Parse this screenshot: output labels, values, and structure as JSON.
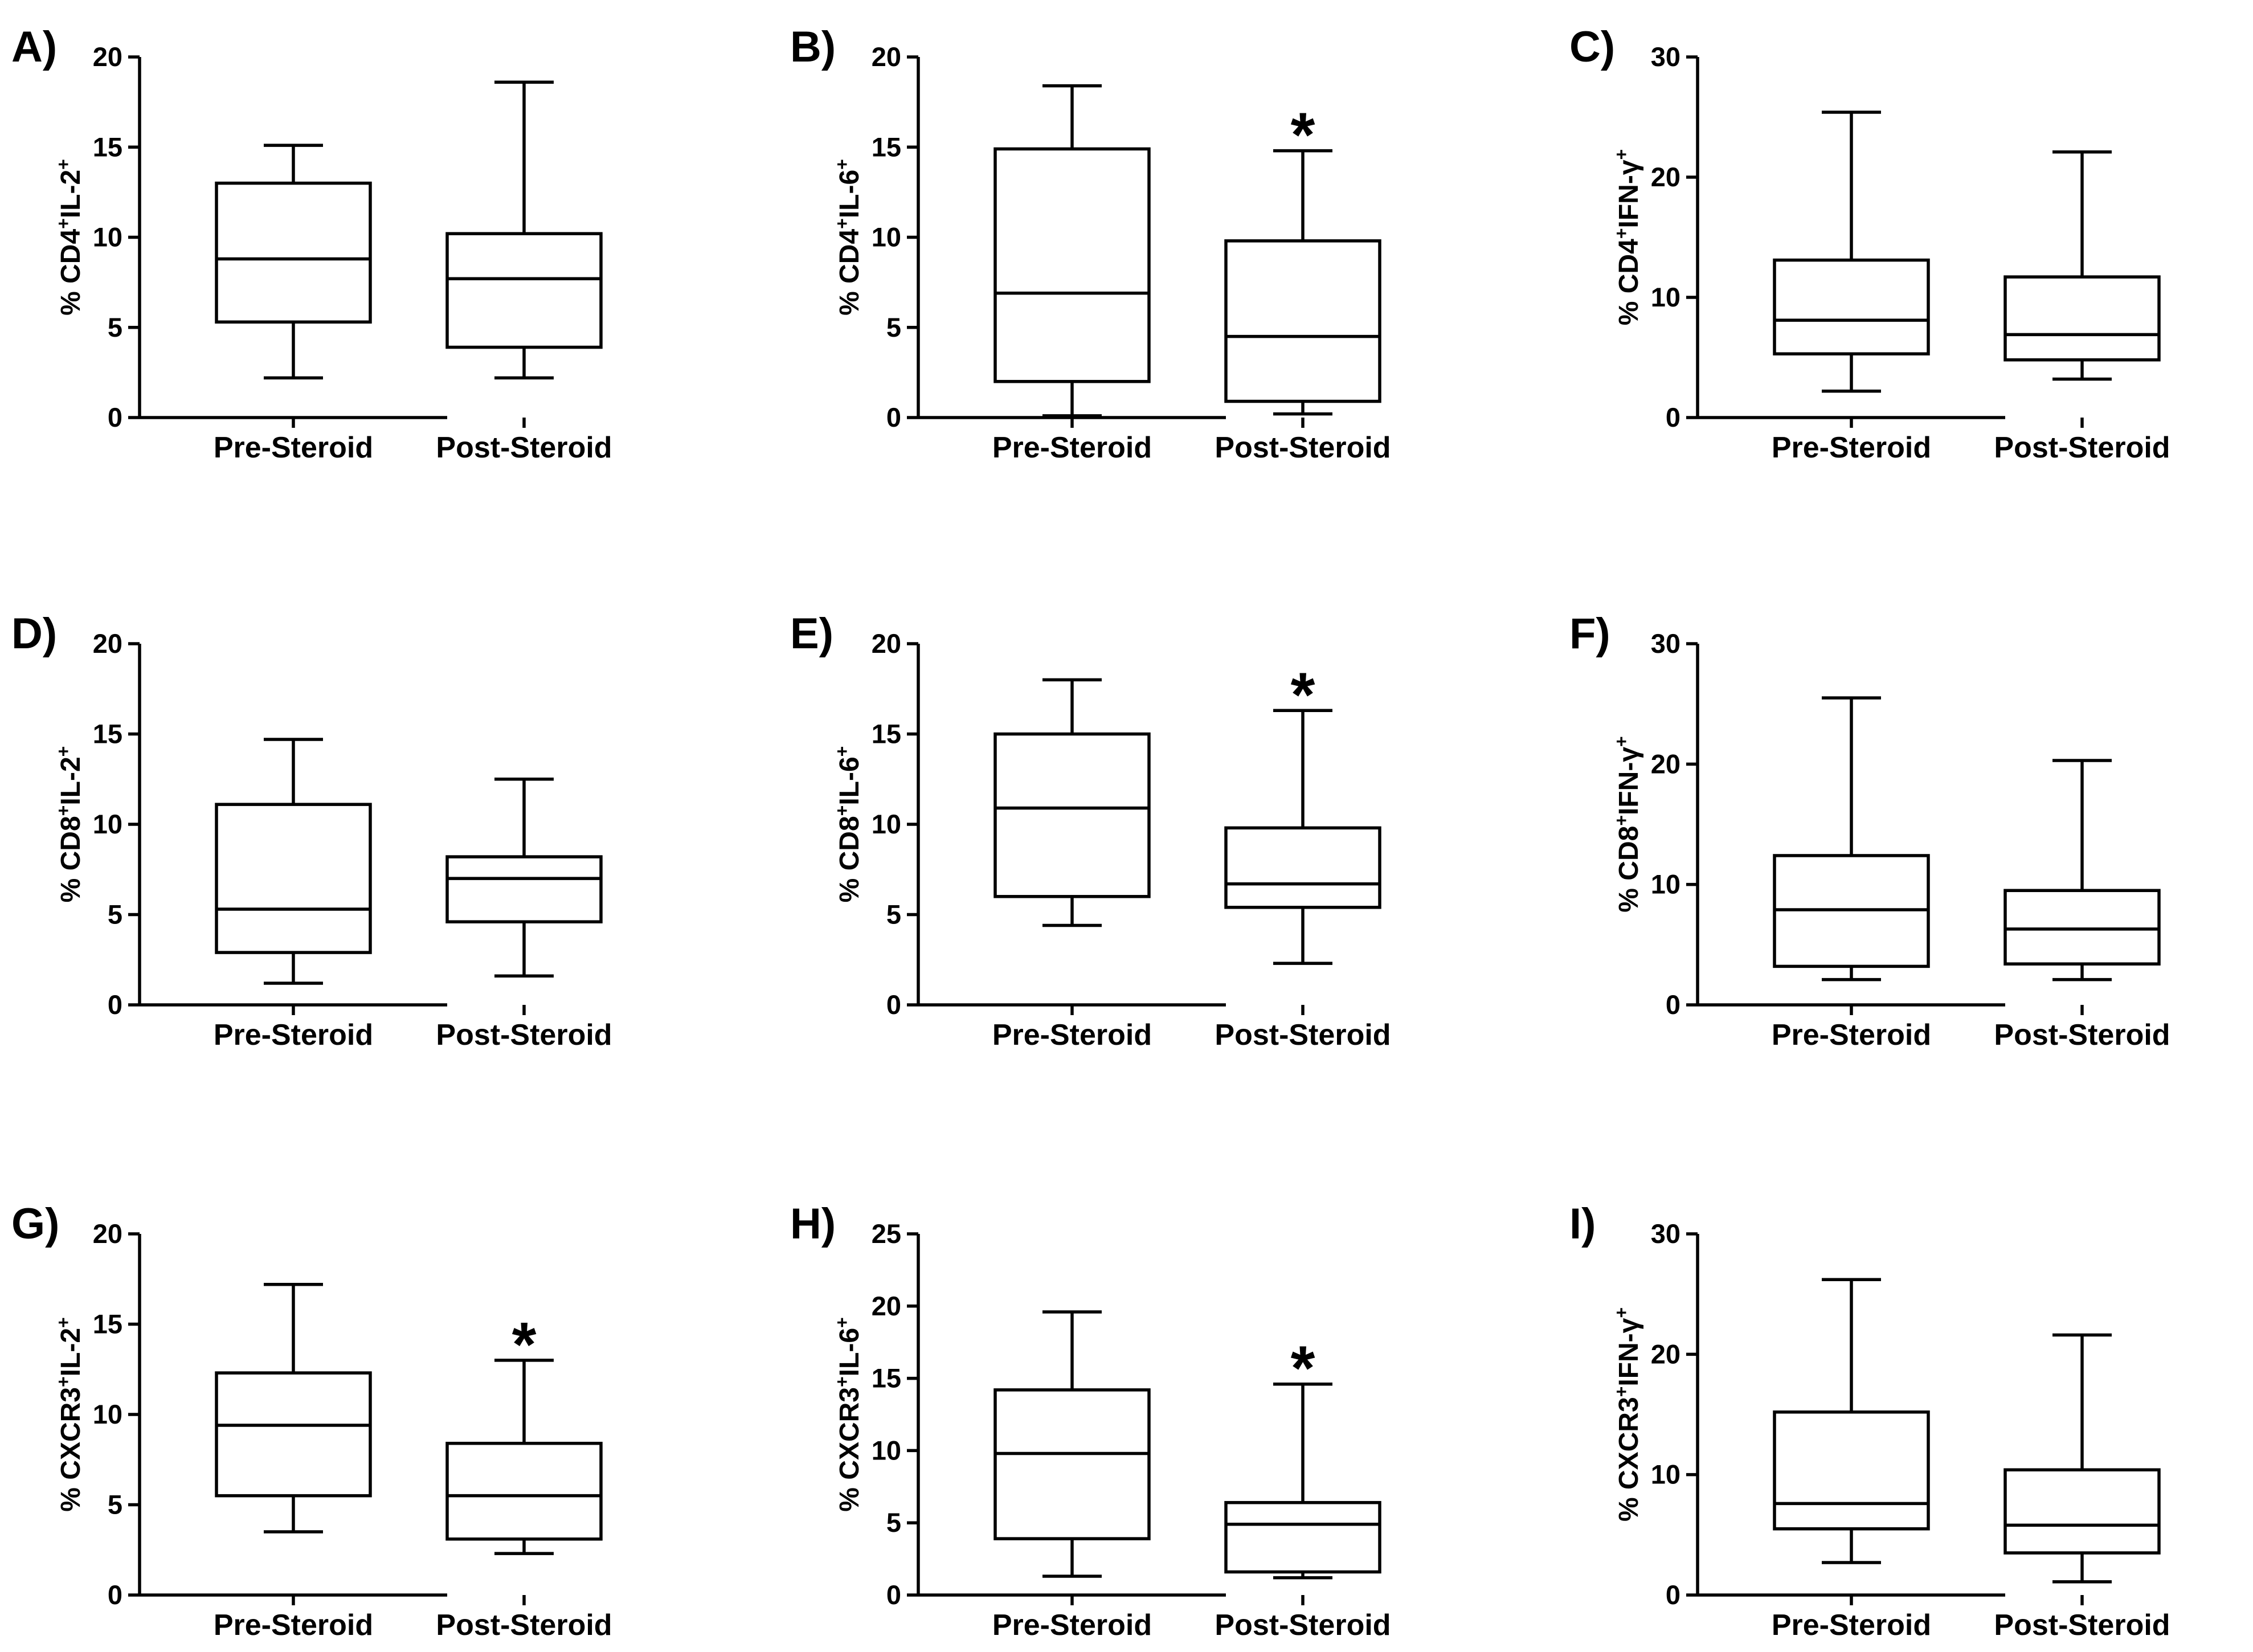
{
  "figure": {
    "categories": [
      "Pre-Steroid",
      "Post-Steroid"
    ]
  },
  "chart_data": [
    {
      "id": "A",
      "letter": "A)",
      "type": "boxplot",
      "ylabel": [
        {
          "t": "% CD4"
        },
        {
          "t": "+",
          "sup": true
        },
        {
          "t": "IL-2"
        },
        {
          "t": "+",
          "sup": true
        }
      ],
      "ylim": [
        0,
        20
      ],
      "yticks": [
        0,
        5,
        10,
        15,
        20
      ],
      "categories": [
        "Pre-Steroid",
        "Post-Steroid"
      ],
      "boxes": [
        {
          "min": 2.2,
          "q1": 5.3,
          "median": 8.8,
          "q3": 13.0,
          "max": 15.1,
          "significant": false
        },
        {
          "min": 2.2,
          "q1": 3.9,
          "median": 7.7,
          "q3": 10.2,
          "max": 18.6,
          "significant": false
        }
      ]
    },
    {
      "id": "B",
      "letter": "B)",
      "type": "boxplot",
      "ylabel": [
        {
          "t": "% CD4"
        },
        {
          "t": "+",
          "sup": true
        },
        {
          "t": "IL-6"
        },
        {
          "t": "+",
          "sup": true
        }
      ],
      "ylim": [
        0,
        20
      ],
      "yticks": [
        0,
        5,
        10,
        15,
        20
      ],
      "categories": [
        "Pre-Steroid",
        "Post-Steroid"
      ],
      "boxes": [
        {
          "min": 0.1,
          "q1": 2.0,
          "median": 6.9,
          "q3": 14.9,
          "max": 18.4,
          "significant": false
        },
        {
          "min": 0.2,
          "q1": 0.9,
          "median": 4.5,
          "q3": 9.8,
          "max": 14.8,
          "significant": true
        }
      ]
    },
    {
      "id": "C",
      "letter": "C)",
      "type": "boxplot",
      "ylabel": [
        {
          "t": "% CD4"
        },
        {
          "t": "+",
          "sup": true
        },
        {
          "t": "IFN-γ"
        },
        {
          "t": "+",
          "sup": true
        }
      ],
      "ylim": [
        0,
        30
      ],
      "yticks": [
        0,
        10,
        20,
        30
      ],
      "categories": [
        "Pre-Steroid",
        "Post-Steroid"
      ],
      "boxes": [
        {
          "min": 2.2,
          "q1": 5.3,
          "median": 8.1,
          "q3": 13.1,
          "max": 25.4,
          "significant": false
        },
        {
          "min": 3.2,
          "q1": 4.8,
          "median": 6.9,
          "q3": 11.7,
          "max": 22.1,
          "significant": false
        }
      ]
    },
    {
      "id": "D",
      "letter": "D)",
      "type": "boxplot",
      "ylabel": [
        {
          "t": "% CD8"
        },
        {
          "t": "+",
          "sup": true
        },
        {
          "t": "IL-2"
        },
        {
          "t": "+",
          "sup": true
        }
      ],
      "ylim": [
        0,
        20
      ],
      "yticks": [
        0,
        5,
        10,
        15,
        20
      ],
      "categories": [
        "Pre-Steroid",
        "Post-Steroid"
      ],
      "boxes": [
        {
          "min": 1.2,
          "q1": 2.9,
          "median": 5.3,
          "q3": 11.1,
          "max": 14.7,
          "significant": false
        },
        {
          "min": 1.6,
          "q1": 4.6,
          "median": 7.0,
          "q3": 8.2,
          "max": 12.5,
          "significant": false
        }
      ]
    },
    {
      "id": "E",
      "letter": "E)",
      "type": "boxplot",
      "ylabel": [
        {
          "t": "% CD8"
        },
        {
          "t": "+",
          "sup": true
        },
        {
          "t": "IL-6"
        },
        {
          "t": "+",
          "sup": true
        }
      ],
      "ylim": [
        0,
        20
      ],
      "yticks": [
        0,
        5,
        10,
        15,
        20
      ],
      "categories": [
        "Pre-Steroid",
        "Post-Steroid"
      ],
      "boxes": [
        {
          "min": 4.4,
          "q1": 6.0,
          "median": 10.9,
          "q3": 15.0,
          "max": 18.0,
          "significant": false
        },
        {
          "min": 2.3,
          "q1": 5.4,
          "median": 6.7,
          "q3": 9.8,
          "max": 16.3,
          "significant": true
        }
      ]
    },
    {
      "id": "F",
      "letter": "F)",
      "type": "boxplot",
      "ylabel": [
        {
          "t": "% CD8"
        },
        {
          "t": "+",
          "sup": true
        },
        {
          "t": "IFN-γ"
        },
        {
          "t": "+",
          "sup": true
        }
      ],
      "ylim": [
        0,
        30
      ],
      "yticks": [
        0,
        10,
        20,
        30
      ],
      "categories": [
        "Pre-Steroid",
        "Post-Steroid"
      ],
      "boxes": [
        {
          "min": 2.1,
          "q1": 3.2,
          "median": 7.9,
          "q3": 12.4,
          "max": 25.5,
          "significant": false
        },
        {
          "min": 2.1,
          "q1": 3.4,
          "median": 6.3,
          "q3": 9.5,
          "max": 20.3,
          "significant": false
        }
      ]
    },
    {
      "id": "G",
      "letter": "G)",
      "type": "boxplot",
      "ylabel": [
        {
          "t": "% CXCR3"
        },
        {
          "t": "+",
          "sup": true
        },
        {
          "t": "IL-2"
        },
        {
          "t": "+",
          "sup": true
        }
      ],
      "ylim": [
        0,
        20
      ],
      "yticks": [
        0,
        5,
        10,
        15,
        20
      ],
      "categories": [
        "Pre-Steroid",
        "Post-Steroid"
      ],
      "boxes": [
        {
          "min": 3.5,
          "q1": 5.5,
          "median": 9.4,
          "q3": 12.3,
          "max": 17.2,
          "significant": false
        },
        {
          "min": 2.3,
          "q1": 3.1,
          "median": 5.5,
          "q3": 8.4,
          "max": 13.0,
          "significant": true
        }
      ]
    },
    {
      "id": "H",
      "letter": "H)",
      "type": "boxplot",
      "ylabel": [
        {
          "t": "% CXCR3"
        },
        {
          "t": "+",
          "sup": true
        },
        {
          "t": "IL-6"
        },
        {
          "t": "+",
          "sup": true
        }
      ],
      "ylim": [
        0,
        25
      ],
      "yticks": [
        0,
        5,
        10,
        15,
        20,
        25
      ],
      "categories": [
        "Pre-Steroid",
        "Post-Steroid"
      ],
      "boxes": [
        {
          "min": 1.3,
          "q1": 3.9,
          "median": 9.8,
          "q3": 14.2,
          "max": 19.6,
          "significant": false
        },
        {
          "min": 1.2,
          "q1": 1.6,
          "median": 4.9,
          "q3": 6.4,
          "max": 14.6,
          "significant": true
        }
      ]
    },
    {
      "id": "I",
      "letter": "I)",
      "type": "boxplot",
      "ylabel": [
        {
          "t": "% CXCR3"
        },
        {
          "t": "+",
          "sup": true
        },
        {
          "t": "IFN-γ"
        },
        {
          "t": "+",
          "sup": true
        }
      ],
      "ylim": [
        0,
        30
      ],
      "yticks": [
        0,
        10,
        20,
        30
      ],
      "categories": [
        "Pre-Steroid",
        "Post-Steroid"
      ],
      "boxes": [
        {
          "min": 2.7,
          "q1": 5.5,
          "median": 7.6,
          "q3": 15.2,
          "max": 26.2,
          "significant": false
        },
        {
          "min": 1.1,
          "q1": 3.5,
          "median": 5.8,
          "q3": 10.4,
          "max": 21.6,
          "significant": false
        }
      ]
    }
  ]
}
